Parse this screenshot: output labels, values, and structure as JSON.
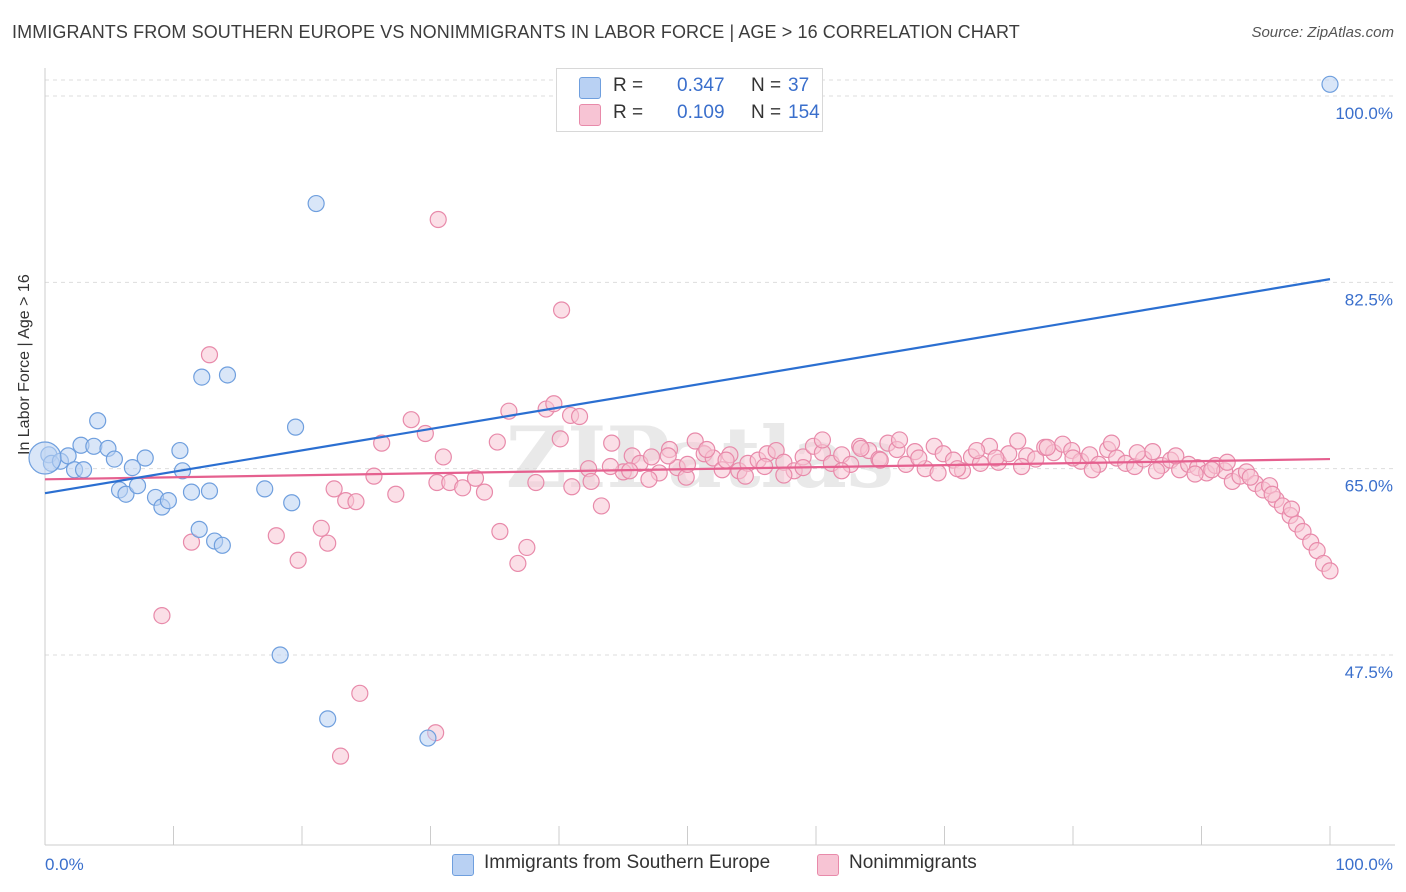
{
  "title": "IMMIGRANTS FROM SOUTHERN EUROPE VS NONIMMIGRANTS IN LABOR FORCE | AGE > 16 CORRELATION CHART",
  "source": "Source: ZipAtlas.com",
  "colors": {
    "blue_fill": "#b9d1f3",
    "blue_stroke": "#6f9fde",
    "blue_line": "#2b6fd1",
    "pink_fill": "#f7c4d4",
    "pink_stroke": "#e88aaa",
    "pink_line": "#e5608f",
    "axis_text": "#3a6fcc",
    "grid": "#dddddd"
  },
  "legend": {
    "r_label": "R =",
    "n_label": "N =",
    "blue": {
      "r": "0.347",
      "n": "37"
    },
    "pink": {
      "r": "0.109",
      "n": "154"
    }
  },
  "bottom_legend": {
    "blue": "Immigrants from Southern Europe",
    "pink": "Nonimmigrants"
  },
  "chart_data": {
    "type": "scatter",
    "xlabel": "",
    "ylabel": "In Labor Force | Age > 16",
    "xlim": [
      0,
      100
    ],
    "ylim": [
      32.5,
      102
    ],
    "x_tick_labels": [
      "0.0%",
      "100.0%"
    ],
    "y_ticks": [
      47.5,
      65.0,
      82.5,
      100.0
    ],
    "y_tick_labels": [
      "47.5%",
      "65.0%",
      "82.5%",
      "100.0%"
    ],
    "grid": true,
    "watermark": "ZIPatlas",
    "series": [
      {
        "name": "Immigrants from Southern Europe",
        "r": 0.347,
        "n": 37,
        "trend": {
          "x": [
            0,
            100
          ],
          "y": [
            62.7,
            82.8
          ]
        },
        "points": [
          [
            0.3,
            66.3
          ],
          [
            0.5,
            65.5
          ],
          [
            1.2,
            65.7
          ],
          [
            1.8,
            66.2
          ],
          [
            2.3,
            64.9
          ],
          [
            2.8,
            67.2
          ],
          [
            3.0,
            64.9
          ],
          [
            3.8,
            67.1
          ],
          [
            4.1,
            69.5
          ],
          [
            4.9,
            66.9
          ],
          [
            5.4,
            65.9
          ],
          [
            5.8,
            63.0
          ],
          [
            6.3,
            62.6
          ],
          [
            6.8,
            65.1
          ],
          [
            7.2,
            63.4
          ],
          [
            7.8,
            66.0
          ],
          [
            8.6,
            62.3
          ],
          [
            9.1,
            61.4
          ],
          [
            9.6,
            62.0
          ],
          [
            10.5,
            66.7
          ],
          [
            10.7,
            64.8
          ],
          [
            11.4,
            62.8
          ],
          [
            12.0,
            59.3
          ],
          [
            12.8,
            62.9
          ],
          [
            13.2,
            58.2
          ],
          [
            13.8,
            57.8
          ],
          [
            12.2,
            73.6
          ],
          [
            14.2,
            73.8
          ],
          [
            17.1,
            63.1
          ],
          [
            19.2,
            61.8
          ],
          [
            19.5,
            68.9
          ],
          [
            18.3,
            47.5
          ],
          [
            21.1,
            89.9
          ],
          [
            22.0,
            41.5
          ],
          [
            29.8,
            39.7
          ],
          [
            100.0,
            101.1
          ],
          [
            0.0,
            66.0
          ]
        ]
      },
      {
        "name": "Nonimmigrants",
        "r": 0.109,
        "n": 154,
        "trend": {
          "x": [
            0,
            100
          ],
          "y": [
            64.0,
            65.9
          ]
        },
        "points": [
          [
            9.1,
            51.2
          ],
          [
            11.4,
            58.1
          ],
          [
            12.8,
            75.7
          ],
          [
            18.0,
            58.7
          ],
          [
            19.7,
            56.4
          ],
          [
            21.5,
            59.4
          ],
          [
            22.5,
            63.1
          ],
          [
            23.4,
            62.0
          ],
          [
            24.2,
            61.9
          ],
          [
            25.6,
            64.3
          ],
          [
            26.2,
            67.4
          ],
          [
            27.3,
            62.6
          ],
          [
            28.5,
            69.6
          ],
          [
            29.6,
            68.3
          ],
          [
            30.5,
            63.7
          ],
          [
            31.5,
            63.7
          ],
          [
            32.5,
            63.2
          ],
          [
            33.5,
            64.1
          ],
          [
            34.2,
            62.8
          ],
          [
            35.2,
            67.5
          ],
          [
            36.1,
            70.4
          ],
          [
            36.8,
            56.1
          ],
          [
            37.5,
            57.6
          ],
          [
            38.2,
            63.7
          ],
          [
            39.0,
            70.6
          ],
          [
            39.6,
            71.1
          ],
          [
            40.1,
            67.8
          ],
          [
            40.9,
            70.0
          ],
          [
            41.6,
            69.9
          ],
          [
            42.3,
            65.0
          ],
          [
            43.3,
            61.5
          ],
          [
            44.1,
            67.4
          ],
          [
            45.0,
            64.7
          ],
          [
            45.7,
            66.2
          ],
          [
            46.3,
            65.5
          ],
          [
            47.2,
            66.1
          ],
          [
            47.8,
            64.6
          ],
          [
            48.6,
            66.8
          ],
          [
            49.2,
            65.1
          ],
          [
            49.9,
            64.2
          ],
          [
            50.6,
            67.6
          ],
          [
            51.3,
            66.4
          ],
          [
            52.0,
            66.0
          ],
          [
            52.7,
            64.9
          ],
          [
            53.3,
            66.3
          ],
          [
            54.0,
            64.8
          ],
          [
            54.7,
            65.5
          ],
          [
            55.5,
            65.8
          ],
          [
            56.2,
            66.4
          ],
          [
            56.9,
            66.7
          ],
          [
            57.5,
            65.6
          ],
          [
            58.3,
            64.8
          ],
          [
            59.0,
            66.1
          ],
          [
            59.8,
            67.1
          ],
          [
            60.5,
            66.5
          ],
          [
            61.2,
            65.5
          ],
          [
            62.0,
            66.3
          ],
          [
            62.7,
            65.4
          ],
          [
            63.4,
            67.1
          ],
          [
            64.1,
            66.7
          ],
          [
            64.9,
            65.9
          ],
          [
            65.6,
            67.4
          ],
          [
            66.3,
            66.8
          ],
          [
            67.0,
            65.4
          ],
          [
            67.7,
            66.6
          ],
          [
            68.5,
            65.0
          ],
          [
            69.2,
            67.1
          ],
          [
            69.9,
            66.4
          ],
          [
            70.7,
            65.8
          ],
          [
            71.4,
            64.8
          ],
          [
            72.1,
            66.1
          ],
          [
            72.8,
            65.5
          ],
          [
            73.5,
            67.1
          ],
          [
            74.2,
            65.6
          ],
          [
            75.0,
            66.4
          ],
          [
            75.7,
            67.6
          ],
          [
            76.4,
            66.2
          ],
          [
            77.1,
            65.9
          ],
          [
            77.8,
            67.0
          ],
          [
            78.5,
            66.5
          ],
          [
            79.2,
            67.3
          ],
          [
            79.9,
            66.7
          ],
          [
            80.6,
            65.7
          ],
          [
            81.3,
            66.3
          ],
          [
            82.0,
            65.4
          ],
          [
            82.7,
            66.8
          ],
          [
            83.4,
            66.0
          ],
          [
            84.1,
            65.5
          ],
          [
            84.8,
            65.2
          ],
          [
            85.5,
            65.9
          ],
          [
            86.2,
            66.6
          ],
          [
            86.9,
            65.3
          ],
          [
            87.6,
            65.8
          ],
          [
            88.3,
            64.9
          ],
          [
            89.0,
            65.4
          ],
          [
            89.7,
            65.1
          ],
          [
            90.4,
            64.6
          ],
          [
            91.1,
            65.3
          ],
          [
            91.8,
            64.8
          ],
          [
            92.4,
            63.8
          ],
          [
            93.0,
            64.3
          ],
          [
            93.5,
            64.7
          ],
          [
            94.2,
            63.6
          ],
          [
            94.8,
            63.0
          ],
          [
            95.3,
            63.4
          ],
          [
            95.8,
            62.1
          ],
          [
            96.3,
            61.5
          ],
          [
            96.9,
            60.6
          ],
          [
            97.4,
            59.8
          ],
          [
            97.9,
            59.1
          ],
          [
            98.5,
            58.1
          ],
          [
            99.0,
            57.3
          ],
          [
            99.5,
            56.1
          ],
          [
            100.0,
            55.4
          ],
          [
            97.0,
            61.2
          ],
          [
            95.5,
            62.6
          ],
          [
            93.8,
            64.2
          ],
          [
            92.0,
            65.6
          ],
          [
            90.8,
            64.9
          ],
          [
            89.5,
            64.5
          ],
          [
            88.0,
            66.2
          ],
          [
            86.5,
            64.8
          ],
          [
            85.0,
            66.5
          ],
          [
            83.0,
            67.4
          ],
          [
            81.5,
            64.9
          ],
          [
            80.0,
            66.0
          ],
          [
            78.0,
            67.0
          ],
          [
            76.0,
            65.2
          ],
          [
            74.0,
            66.0
          ],
          [
            72.5,
            66.7
          ],
          [
            71.0,
            65.0
          ],
          [
            69.5,
            64.6
          ],
          [
            68.0,
            66.0
          ],
          [
            66.5,
            67.7
          ],
          [
            65.0,
            65.8
          ],
          [
            63.5,
            66.9
          ],
          [
            62.0,
            64.8
          ],
          [
            60.5,
            67.7
          ],
          [
            59.0,
            65.1
          ],
          [
            57.5,
            64.4
          ],
          [
            56.0,
            65.2
          ],
          [
            54.5,
            64.3
          ],
          [
            53.0,
            65.8
          ],
          [
            51.5,
            66.8
          ],
          [
            50.0,
            65.4
          ],
          [
            48.5,
            66.2
          ],
          [
            47.0,
            64.0
          ],
          [
            45.5,
            64.8
          ],
          [
            44.0,
            65.2
          ],
          [
            42.5,
            63.8
          ],
          [
            41.0,
            63.3
          ],
          [
            23.0,
            38.0
          ],
          [
            22.0,
            58.0
          ],
          [
            24.5,
            43.9
          ],
          [
            30.4,
            40.2
          ],
          [
            35.4,
            59.1
          ],
          [
            30.6,
            88.4
          ],
          [
            40.2,
            79.9
          ],
          [
            31.0,
            66.1
          ]
        ]
      }
    ]
  }
}
